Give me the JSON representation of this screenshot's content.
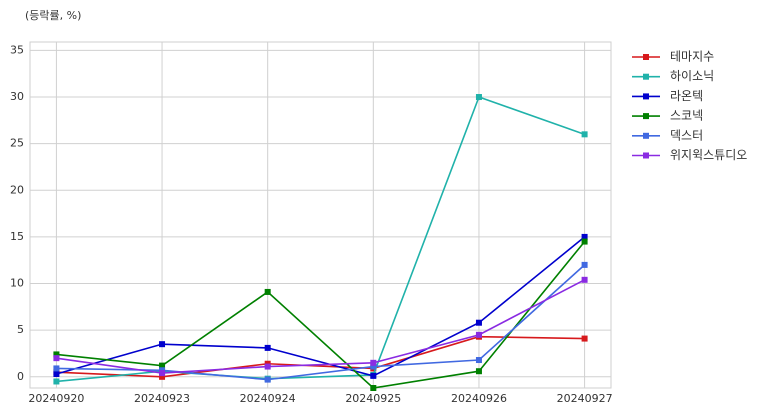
{
  "chart_data": {
    "type": "line",
    "annotation": "(등락률, %)",
    "categories": [
      "20240920",
      "20240923",
      "20240924",
      "20240925",
      "20240926",
      "20240927"
    ],
    "series": [
      {
        "name": "테마지수",
        "color": "#d7191c",
        "values": [
          0.5,
          0.0,
          1.4,
          0.9,
          4.3,
          4.1
        ]
      },
      {
        "name": "하이소닉",
        "color": "#20b2aa",
        "values": [
          -0.5,
          0.6,
          -0.2,
          0.2,
          30.0,
          26.0
        ]
      },
      {
        "name": "라온텍",
        "color": "#0000cd",
        "values": [
          0.3,
          3.5,
          3.1,
          0.1,
          5.8,
          15.0
        ]
      },
      {
        "name": "스코넥",
        "color": "#008000",
        "values": [
          2.4,
          1.2,
          9.1,
          -1.2,
          0.6,
          14.5
        ]
      },
      {
        "name": "덱스터",
        "color": "#4169e1",
        "values": [
          0.9,
          0.7,
          -0.3,
          1.1,
          1.8,
          12.0
        ]
      },
      {
        "name": "위지윅스튜디오",
        "color": "#8a2be2",
        "values": [
          2.0,
          0.4,
          1.1,
          1.5,
          4.5,
          10.4
        ]
      }
    ],
    "ylim": [
      -1.2,
      35.9
    ],
    "yticks": [
      0,
      5,
      10,
      15,
      20,
      25,
      30,
      35
    ],
    "grid": true,
    "legend": "outside-right"
  }
}
